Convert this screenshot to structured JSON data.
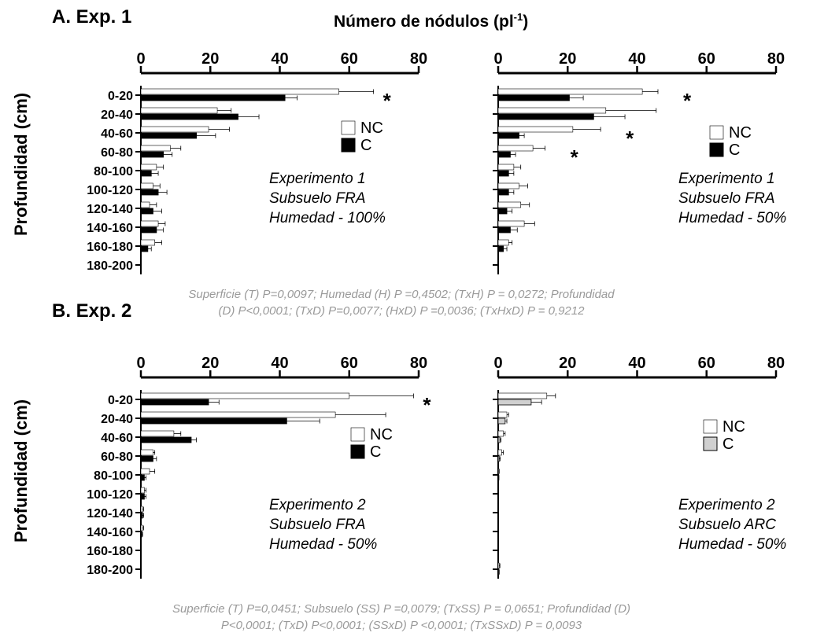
{
  "figure": {
    "section_a_label": "A.  Exp. 1",
    "section_b_label": "B.  Exp. 2",
    "x_title_main": "Número de nódulos (pl",
    "x_title_sup": "-1",
    "x_title_close": ")",
    "y_title": "Profundidad (cm)",
    "stats_exp1": [
      "Superficie (T) P=0,0097; Humedad (H) P =0,4502;  (TxH) P = 0,0272;  Profundidad",
      "(D) P<0,0001; (TxD) P=0,0077; (HxD) P =0,0036;  (TxHxD) P = 0,9212"
    ],
    "stats_exp2": [
      "Superficie (T) P=0,0451; Subsuelo (SS) P =0,0079;  (TxSS) P = 0,0651;  Profundidad (D)",
      "P<0,0001; (TxD) P<0,0001; (SSxD) P  <0,0001;  (TxSSxD) P = 0,0093"
    ]
  },
  "chart_data": [
    {
      "type": "bar",
      "orientation": "horizontal",
      "categories": [
        "0-20",
        "20-40",
        "40-60",
        "60-80",
        "80-100",
        "100-120",
        "120-140",
        "140-160",
        "160-180",
        "180-200"
      ],
      "xlim": [
        0,
        80
      ],
      "xticks": [
        0,
        20,
        40,
        60,
        80
      ],
      "series": [
        {
          "name": "NC",
          "color": "#ffffff",
          "values": [
            57,
            22,
            19.5,
            8.5,
            4.5,
            3.5,
            2.5,
            5,
            4,
            null
          ],
          "errors": [
            10,
            4,
            6,
            3,
            2,
            2,
            2,
            2,
            2,
            null
          ]
        },
        {
          "name": "C",
          "color": "#000000",
          "values": [
            41.5,
            28,
            16,
            6.5,
            3,
            5,
            3.5,
            4.5,
            2,
            null
          ],
          "errors": [
            3.5,
            6,
            5.5,
            2.5,
            2,
            2.5,
            2.5,
            2,
            1,
            null
          ]
        }
      ],
      "significance": [
        {
          "category": "0-20",
          "mark": "*"
        }
      ],
      "annotation": [
        "Experimento 1",
        "Subsuelo FRA",
        "Humedad - 100%"
      ]
    },
    {
      "type": "bar",
      "orientation": "horizontal",
      "categories": [
        "0-20",
        "20-40",
        "40-60",
        "60-80",
        "80-100",
        "100-120",
        "120-140",
        "140-160",
        "160-180",
        "180-200"
      ],
      "xlim": [
        0,
        80
      ],
      "xticks": [
        0,
        20,
        40,
        60,
        80
      ],
      "series": [
        {
          "name": "NC",
          "color": "#ffffff",
          "values": [
            41.5,
            31,
            21.5,
            10,
            4.5,
            6,
            6.5,
            7.5,
            3,
            null
          ],
          "errors": [
            4.5,
            14.5,
            8,
            3.5,
            2,
            2.5,
            2.5,
            3,
            1,
            null
          ]
        },
        {
          "name": "C",
          "color": "#000000",
          "values": [
            20.5,
            27.5,
            6,
            3.5,
            3,
            3,
            2.5,
            3.5,
            1.5,
            null
          ],
          "errors": [
            4,
            9,
            1.5,
            1.5,
            1.5,
            1.5,
            1.5,
            2,
            1,
            null
          ]
        }
      ],
      "significance": [
        {
          "category": "0-20",
          "mark": "*"
        },
        {
          "category": "40-60",
          "mark": "*"
        },
        {
          "category": "60-80",
          "mark": "*"
        }
      ],
      "annotation": [
        "Experimento 1",
        "Subsuelo FRA",
        "Humedad - 50%"
      ]
    },
    {
      "type": "bar",
      "orientation": "horizontal",
      "categories": [
        "0-20",
        "20-40",
        "40-60",
        "60-80",
        "80-100",
        "100-120",
        "120-140",
        "140-160",
        "160-180",
        "180-200"
      ],
      "xlim": [
        0,
        80
      ],
      "xticks": [
        0,
        20,
        40,
        60,
        80
      ],
      "series": [
        {
          "name": "NC",
          "color": "#ffffff",
          "values": [
            60,
            56,
            9.5,
            3.5,
            2.5,
            1,
            0.5,
            0.5,
            null,
            null
          ],
          "errors": [
            18.5,
            14.5,
            2,
            0.5,
            1.5,
            0.5,
            0.3,
            0.3,
            null,
            null
          ]
        },
        {
          "name": "C",
          "color": "#000000",
          "values": [
            19.5,
            42,
            14.5,
            3.5,
            1,
            1,
            0.5,
            0.3,
            null,
            null
          ],
          "errors": [
            3,
            9.5,
            1.5,
            1,
            0.5,
            0.5,
            0.3,
            0.2,
            null,
            null
          ]
        }
      ],
      "significance": [
        {
          "category": "0-20",
          "mark": "*"
        }
      ],
      "annotation": [
        "Experimento 2",
        "Subsuelo FRA",
        "Humedad - 50%"
      ]
    },
    {
      "type": "bar",
      "orientation": "horizontal",
      "categories": [
        "0-20",
        "20-40",
        "40-60",
        "60-80",
        "80-100",
        "100-120",
        "120-140",
        "140-160",
        "160-180",
        "180-200"
      ],
      "xlim": [
        0,
        80
      ],
      "xticks": [
        0,
        20,
        40,
        60,
        80
      ],
      "series": [
        {
          "name": "NC",
          "color": "#ffffff",
          "values": [
            14,
            2.5,
            1.5,
            1,
            0.2,
            null,
            null,
            null,
            null,
            0.3
          ],
          "errors": [
            2.5,
            0.5,
            0.5,
            0.5,
            0.1,
            null,
            null,
            null,
            null,
            0.2
          ]
        },
        {
          "name": "C",
          "color": "#d0d0d0",
          "values": [
            9.5,
            2,
            0.5,
            0.3,
            0.1,
            null,
            null,
            null,
            null,
            0.2
          ],
          "errors": [
            3,
            0.5,
            0.3,
            0.3,
            0.1,
            null,
            null,
            null,
            null,
            0.1
          ]
        }
      ],
      "significance": [],
      "annotation": [
        "Experimento 2",
        "Subsuelo ARC",
        "Humedad - 50%"
      ]
    }
  ]
}
